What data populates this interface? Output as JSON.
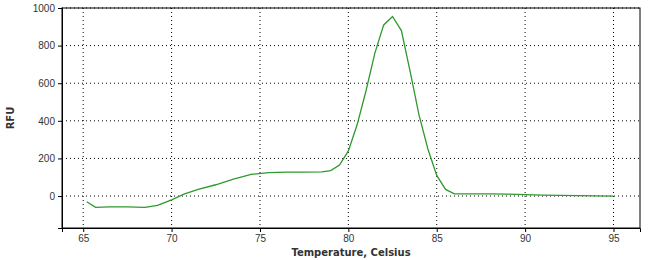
{
  "chart_data": {
    "type": "line",
    "x_label": "Temperature, Celsius",
    "y_label": "RFU",
    "x": [
      65.2,
      65.7,
      66.5,
      67.5,
      68.5,
      69.2,
      70,
      70.7,
      71.5,
      72.5,
      73.5,
      74.5,
      75.5,
      76.5,
      77.5,
      78.5,
      79,
      79.5,
      80,
      80.5,
      81,
      81.5,
      82,
      82.5,
      83,
      83.5,
      84,
      84.5,
      85,
      85.5,
      86,
      87,
      88,
      89,
      90,
      91,
      92,
      93,
      94,
      95
    ],
    "values": [
      -30,
      -60,
      -58,
      -58,
      -60,
      -50,
      -20,
      10,
      35,
      60,
      90,
      115,
      125,
      127,
      127,
      128,
      135,
      165,
      240,
      380,
      560,
      760,
      910,
      955,
      880,
      660,
      430,
      250,
      110,
      35,
      12,
      12,
      12,
      10,
      8,
      5,
      3,
      2,
      1,
      0
    ],
    "color": "#2e9a2e",
    "xlim": [
      63.8,
      96.5
    ],
    "ylim": [
      -170,
      1000
    ],
    "xticks": [
      65,
      70,
      75,
      80,
      85,
      90,
      95
    ],
    "yticks": [
      0,
      200,
      400,
      600,
      800,
      1000
    ],
    "grid": true
  }
}
